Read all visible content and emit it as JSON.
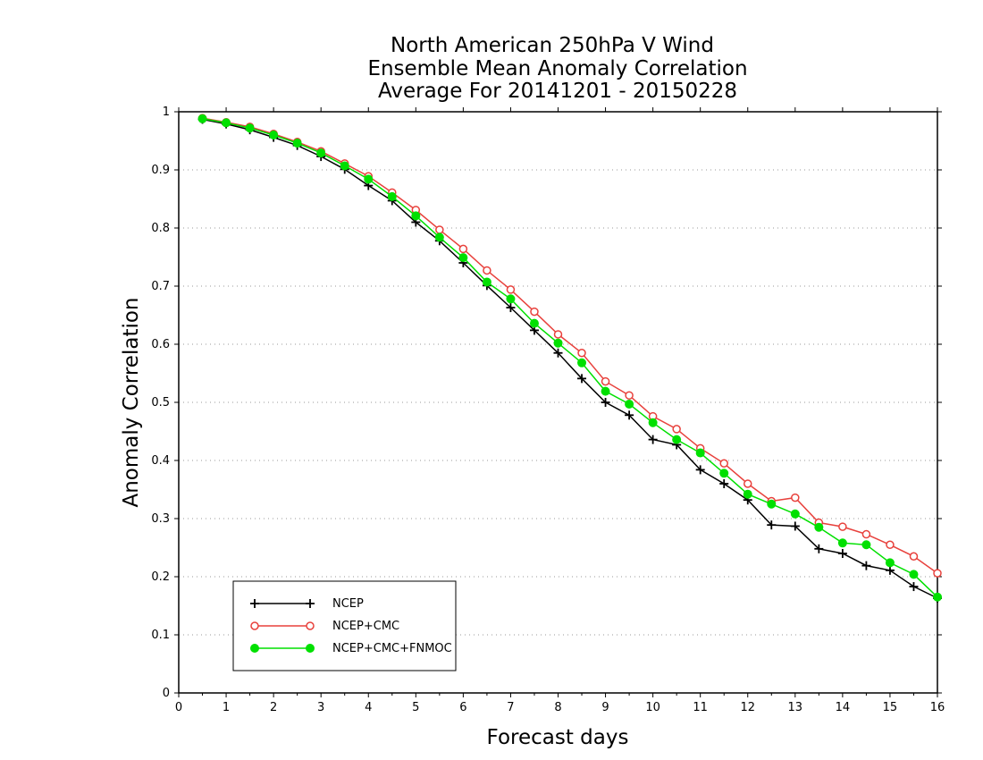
{
  "chart_data": {
    "type": "line",
    "title_lines": [
      "North American 250hPa V Wind",
      "Ensemble Mean Anomaly Correlation",
      "Average For 20141201 - 20150228"
    ],
    "xlabel": "Forecast days",
    "ylabel": "Anomaly Correlation",
    "xlim": [
      0,
      16
    ],
    "ylim": [
      0,
      1
    ],
    "xticks": [
      0,
      1,
      2,
      3,
      4,
      5,
      6,
      7,
      8,
      9,
      10,
      11,
      12,
      13,
      14,
      15,
      16
    ],
    "yticks": [
      0,
      0.1,
      0.2,
      0.3,
      0.4,
      0.5,
      0.6,
      0.7,
      0.8,
      0.9,
      1
    ],
    "grid": "horizontal-dotted",
    "legend_position": "bottom-left",
    "x": [
      0.5,
      1,
      1.5,
      2,
      2.5,
      3,
      3.5,
      4,
      4.5,
      5,
      5.5,
      6,
      6.5,
      7,
      7.5,
      8,
      8.5,
      9,
      9.5,
      10,
      10.5,
      11,
      11.5,
      12,
      12.5,
      13,
      13.5,
      14,
      14.5,
      15,
      15.5,
      16
    ],
    "series": [
      {
        "name": "NCEP",
        "color": "#000000",
        "marker": "plus",
        "values": [
          0.987,
          0.979,
          0.969,
          0.956,
          0.942,
          0.923,
          0.901,
          0.873,
          0.847,
          0.81,
          0.778,
          0.74,
          0.701,
          0.663,
          0.624,
          0.585,
          0.541,
          0.5,
          0.478,
          0.436,
          0.427,
          0.384,
          0.36,
          0.332,
          0.289,
          0.287,
          0.248,
          0.24,
          0.219,
          0.211,
          0.183,
          0.163
        ]
      },
      {
        "name": "NCEP+CMC",
        "color": "#e8413c",
        "marker": "open-circle",
        "values": [
          0.989,
          0.982,
          0.974,
          0.962,
          0.948,
          0.932,
          0.911,
          0.889,
          0.861,
          0.831,
          0.797,
          0.764,
          0.727,
          0.694,
          0.656,
          0.617,
          0.585,
          0.536,
          0.512,
          0.476,
          0.454,
          0.421,
          0.395,
          0.36,
          0.33,
          0.336,
          0.293,
          0.286,
          0.273,
          0.255,
          0.235,
          0.206
        ]
      },
      {
        "name": "NCEP+CMC+FNMOC",
        "color": "#00e000",
        "marker": "filled-circle",
        "values": [
          0.988,
          0.981,
          0.972,
          0.96,
          0.946,
          0.929,
          0.907,
          0.884,
          0.854,
          0.821,
          0.784,
          0.749,
          0.707,
          0.678,
          0.636,
          0.602,
          0.568,
          0.519,
          0.497,
          0.465,
          0.436,
          0.413,
          0.378,
          0.342,
          0.325,
          0.308,
          0.285,
          0.258,
          0.255,
          0.224,
          0.204,
          0.165
        ]
      }
    ]
  }
}
